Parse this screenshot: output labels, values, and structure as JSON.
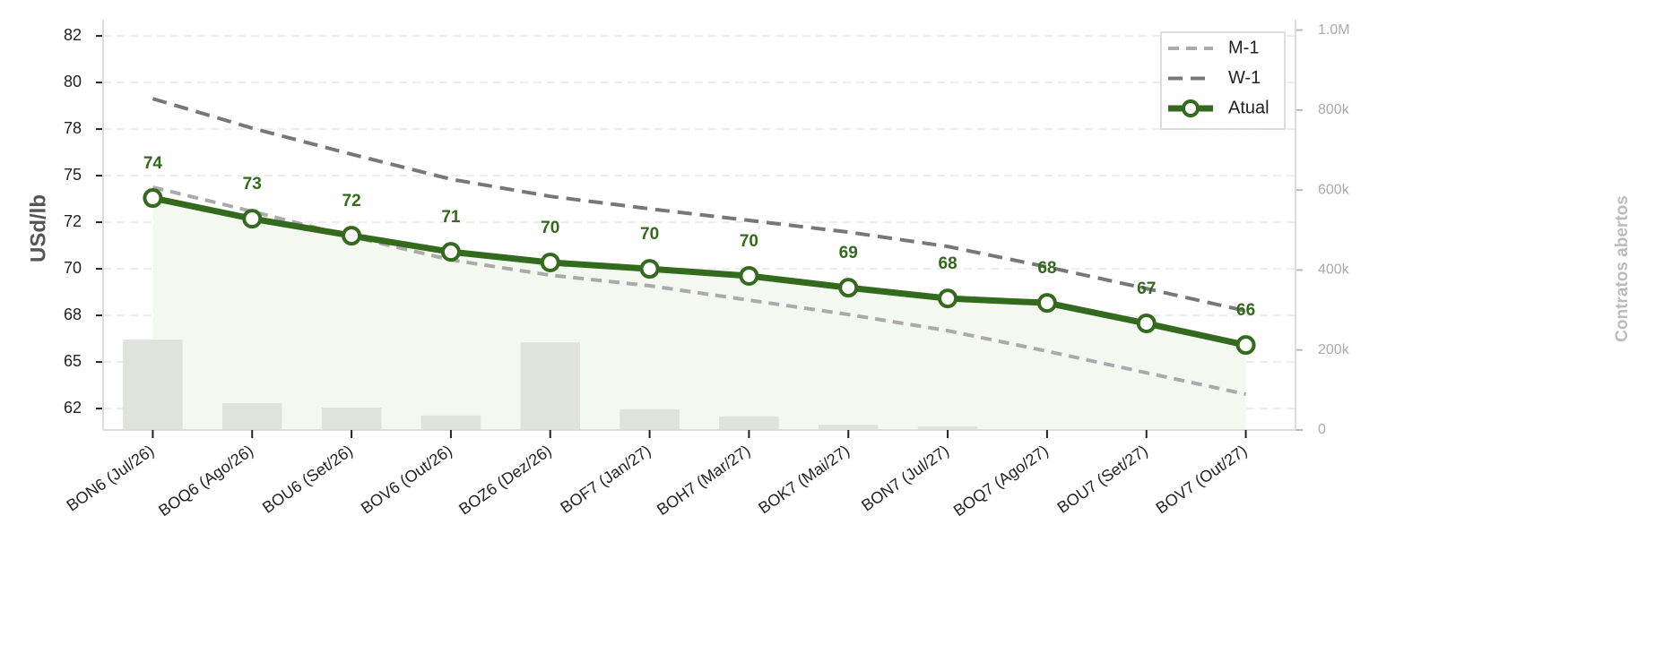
{
  "chart_data": {
    "type": "line",
    "y_label": "USd/lb",
    "y2_label": "Contratos abertos",
    "categories": [
      "BON6 (Jul/26)",
      "BOQ6 (Ago/26)",
      "BOU6 (Set/26)",
      "BOV6 (Out/26)",
      "BOZ6 (Dez/26)",
      "BOF7 (Jan/27)",
      "BOH7 (Mar/27)",
      "BOK7 (Mai/27)",
      "BON7 (Jul/27)",
      "BOQ7 (Ago/27)",
      "BOU7 (Set/27)",
      "BOV7 (Out/27)"
    ],
    "series": [
      {
        "name": "M-1",
        "color": "#aaaaaa",
        "dash": "12 8",
        "values": [
          74.38,
          73.08,
          71.73,
          70.48,
          69.66,
          69.09,
          68.32,
          67.55,
          66.68,
          65.58,
          64.42,
          63.27
        ]
      },
      {
        "name": "W-1",
        "color": "#777777",
        "dash": "16 9",
        "values": [
          79.13,
          77.55,
          76.15,
          74.81,
          73.89,
          73.22,
          72.6,
          71.97,
          71.2,
          70.1,
          68.94,
          67.74
        ]
      },
      {
        "name": "Atual",
        "color": "#336a1e",
        "markers": true,
        "values": [
          73.8,
          72.69,
          71.78,
          70.91,
          70.34,
          70.0,
          69.62,
          68.99,
          68.41,
          68.17,
          67.07,
          65.91
        ],
        "value_labels": [
          "74",
          "73",
          "72",
          "71",
          "70",
          "70",
          "70",
          "69",
          "68",
          "68",
          "67",
          "66"
        ]
      }
    ],
    "bars": {
      "axis": "y2",
      "color": "#dfe3dc",
      "values": [
        226000,
        67000,
        56000,
        36000,
        219000,
        52000,
        34000,
        13000,
        9000,
        0,
        0,
        0
      ]
    },
    "ylim": [
      61.35,
      83.37
    ],
    "yticks": [
      {
        "value": 62.5,
        "label": "62"
      },
      {
        "value": 65,
        "label": "65"
      },
      {
        "value": 67.5,
        "label": "68"
      },
      {
        "value": 70,
        "label": "70"
      },
      {
        "value": 72.5,
        "label": "72"
      },
      {
        "value": 75,
        "label": "75"
      },
      {
        "value": 77.5,
        "label": "78"
      },
      {
        "value": 80,
        "label": "80"
      },
      {
        "value": 82.5,
        "label": "82"
      }
    ],
    "y2lim": [
      0,
      1026000
    ],
    "y2ticks": [
      0,
      {
        "value": 200000,
        "label": "200k"
      },
      {
        "value": 400000,
        "label": "400k"
      },
      {
        "value": 600000,
        "label": "600k"
      },
      {
        "value": 800000,
        "label": "800k"
      },
      {
        "value": 1000000,
        "label": "1.0M"
      }
    ],
    "grid": true,
    "legend": "upper right"
  }
}
